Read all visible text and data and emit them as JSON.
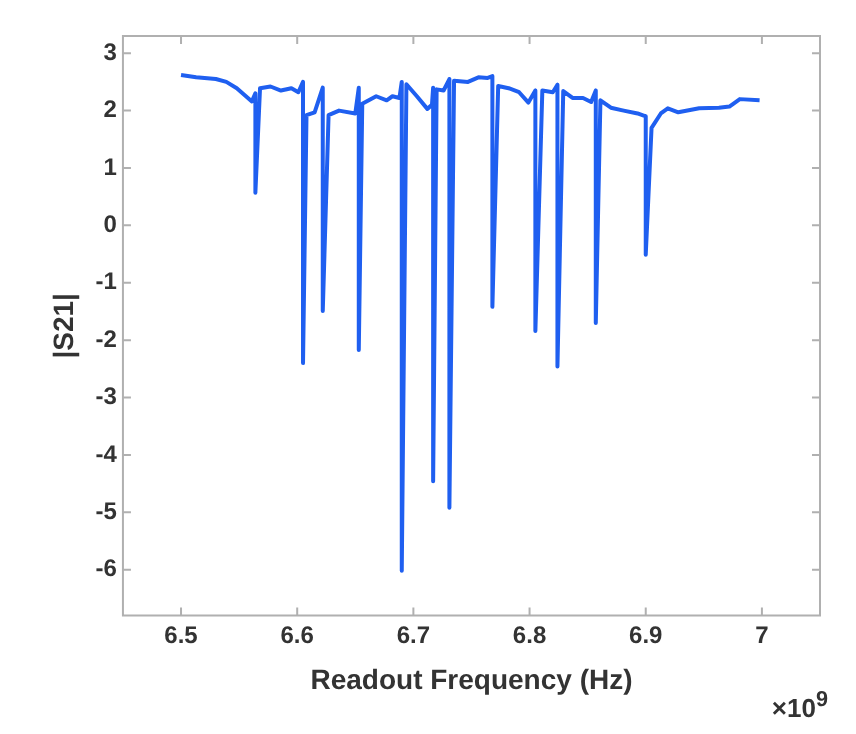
{
  "chart_data": {
    "type": "line",
    "xlabel": "Readout Frequency (Hz)",
    "ylabel": "|S21|",
    "annotations": [
      "×10$^{9}$"
    ],
    "xlim": [
      6.45,
      7.05
    ],
    "xticks": [
      6.5,
      6.6,
      6.7,
      6.8,
      6.9,
      7
    ],
    "ylim": [
      -6.8,
      3.3
    ],
    "yticks": [
      -6,
      -5,
      -4,
      -3,
      -2,
      -1,
      0,
      1,
      2,
      3
    ],
    "grid": false,
    "legend": false,
    "marker": "none",
    "line_style": "solid",
    "series": [
      {
        "color": "#1f5ff0",
        "x": [
          6.5,
          6.513,
          6.53,
          6.539,
          6.548,
          6.561,
          6.564,
          6.564,
          6.568,
          6.577,
          6.586,
          6.595,
          6.601,
          6.605,
          6.605,
          6.608,
          6.615,
          6.622,
          6.622,
          6.627,
          6.636,
          6.65,
          6.653,
          6.653,
          6.656,
          6.668,
          6.677,
          6.682,
          6.688,
          6.69,
          6.69,
          6.694,
          6.703,
          6.712,
          6.716,
          6.717,
          6.717,
          6.72,
          6.726,
          6.731,
          6.731,
          6.735,
          6.747,
          6.756,
          6.764,
          6.768,
          6.768,
          6.773,
          6.782,
          6.791,
          6.799,
          6.805,
          6.805,
          6.811,
          6.82,
          6.824,
          6.824,
          6.829,
          6.837,
          6.846,
          6.853,
          6.857,
          6.857,
          6.861,
          6.87,
          6.881,
          6.893,
          6.9,
          6.9,
          6.905,
          6.913,
          6.919,
          6.928,
          6.946,
          6.963,
          6.972,
          6.981,
          6.998
        ],
        "values": [
          2.62,
          2.58,
          2.55,
          2.5,
          2.39,
          2.16,
          2.3,
          0.57,
          2.39,
          2.42,
          2.35,
          2.39,
          2.32,
          2.5,
          -2.4,
          1.92,
          1.97,
          2.4,
          -1.49,
          1.92,
          2.0,
          1.95,
          2.4,
          -2.17,
          2.12,
          2.25,
          2.18,
          2.25,
          2.22,
          2.5,
          -6.02,
          2.46,
          2.25,
          2.03,
          2.1,
          2.4,
          -4.46,
          2.37,
          2.35,
          2.55,
          -4.92,
          2.52,
          2.5,
          2.58,
          2.57,
          2.6,
          -1.42,
          2.43,
          2.39,
          2.32,
          2.14,
          2.35,
          -1.84,
          2.35,
          2.32,
          2.45,
          -2.46,
          2.34,
          2.22,
          2.22,
          2.15,
          2.35,
          -1.7,
          2.18,
          2.05,
          2.0,
          1.95,
          1.9,
          -0.51,
          1.7,
          1.95,
          2.04,
          1.97,
          2.04,
          2.05,
          2.07,
          2.2,
          2.18
        ]
      }
    ]
  }
}
